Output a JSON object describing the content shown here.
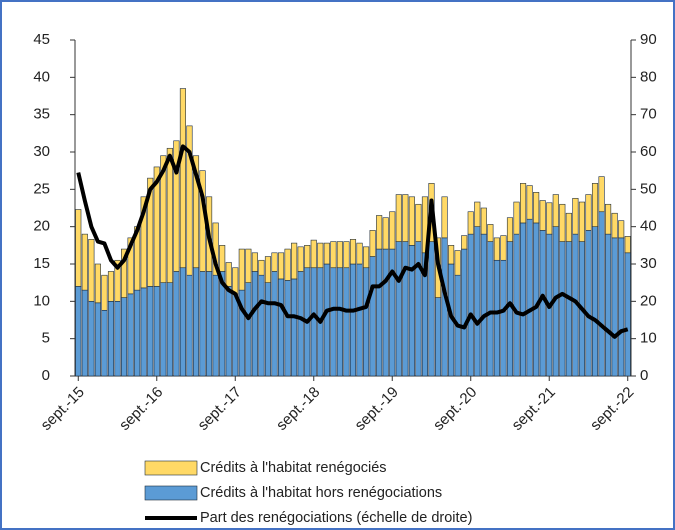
{
  "chart_data": {
    "type": "bar-line",
    "categories": [
      "sept.-15",
      null,
      null,
      null,
      null,
      null,
      null,
      null,
      null,
      null,
      null,
      null,
      "sept.-16",
      null,
      null,
      null,
      null,
      null,
      null,
      null,
      null,
      null,
      null,
      null,
      "sept.-17",
      null,
      null,
      null,
      null,
      null,
      null,
      null,
      null,
      null,
      null,
      null,
      "sept.-18",
      null,
      null,
      null,
      null,
      null,
      null,
      null,
      null,
      null,
      null,
      null,
      "sept.-19",
      null,
      null,
      null,
      null,
      null,
      null,
      null,
      null,
      null,
      null,
      null,
      "sept.-20",
      null,
      null,
      null,
      null,
      null,
      null,
      null,
      null,
      null,
      null,
      null,
      "sept.-21",
      null,
      null,
      null,
      null,
      null,
      null,
      null,
      null,
      null,
      null,
      null,
      "sept.-22"
    ],
    "series": [
      {
        "name": "Crédits à l'habitat hors renégociations",
        "color": "#5b9bd5",
        "type": "bar",
        "values": [
          12,
          11.5,
          10,
          9.8,
          8.8,
          10,
          10,
          10.5,
          11,
          11.5,
          11.8,
          12,
          12,
          12.5,
          12.5,
          14,
          14.5,
          13.5,
          14.5,
          14,
          14,
          13.5,
          14,
          12,
          11,
          11.5,
          12.5,
          14,
          13.5,
          12.5,
          14,
          13,
          12.8,
          13,
          14,
          14.5,
          14.5,
          14.5,
          15,
          14.5,
          14.5,
          14.5,
          15,
          15,
          14.5,
          16,
          17,
          17,
          17,
          18,
          18,
          17.5,
          18,
          16.5,
          18,
          10.5,
          18.5,
          15,
          13.5,
          17,
          19,
          20,
          19,
          18,
          15.5,
          15.5,
          18,
          19,
          20.5,
          21,
          20.5,
          19.5,
          19,
          20,
          18,
          18,
          19,
          18,
          19.5,
          20,
          22,
          19,
          18.5,
          18.5,
          16.5
        ]
      },
      {
        "name": "Crédits à l'habitat renégociés",
        "color": "#ffd966",
        "type": "bar",
        "values": [
          10.3,
          7.5,
          8.3,
          5.2,
          4.7,
          4,
          5.5,
          6.5,
          7.5,
          8.5,
          12.2,
          14.5,
          16,
          17,
          18,
          17.5,
          24,
          20,
          15,
          13.5,
          10,
          7,
          3.5,
          3.2,
          3.5,
          5.5,
          4.5,
          2.5,
          2,
          3.5,
          2.5,
          3.5,
          4.2,
          4.8,
          3.3,
          3,
          3.7,
          3.3,
          2.8,
          3.5,
          3.5,
          3.5,
          3.3,
          2.8,
          2.8,
          3.5,
          4.5,
          4.2,
          5,
          6.3,
          6.3,
          6.5,
          5,
          7.5,
          7.8,
          8,
          5.5,
          2.5,
          3.3,
          1.8,
          3,
          3.3,
          3.5,
          2.3,
          3,
          3.3,
          3.2,
          4.3,
          5.3,
          4.5,
          4.1,
          4,
          4.2,
          4.3,
          5,
          3.8,
          4.8,
          5.3,
          4.8,
          5.8,
          4.7,
          4,
          3.3,
          2.3,
          2.2
        ]
      },
      {
        "name": "Part des renégociations (échelle de droite)",
        "color": "#000000",
        "type": "line",
        "axis": "y2",
        "values": [
          54.5,
          47,
          40,
          36,
          35.5,
          31,
          29,
          31,
          35,
          39,
          44,
          50,
          52,
          55,
          59,
          54.5,
          61.5,
          60,
          54,
          48,
          37,
          30,
          25,
          23,
          22,
          18,
          15.5,
          18,
          20,
          19.5,
          19.5,
          19,
          16,
          16,
          15.5,
          14.5,
          16.5,
          14.5,
          17.5,
          18,
          18,
          17.5,
          17.5,
          18,
          18.5,
          24,
          24,
          25.5,
          28,
          25.5,
          29,
          28.5,
          30,
          27,
          47,
          30,
          22.5,
          16,
          13.5,
          13,
          16.5,
          14,
          16,
          17,
          17,
          17.5,
          19.5,
          17,
          16.5,
          17.5,
          18.5,
          21.5,
          18.5,
          21,
          22,
          21,
          20,
          18,
          16,
          15,
          13.5,
          12,
          10.5,
          12,
          12.5
        ]
      }
    ],
    "ylim": [
      0,
      45
    ],
    "yticks": [
      0,
      5,
      10,
      15,
      20,
      25,
      30,
      35,
      40,
      45
    ],
    "y2lim": [
      0,
      90
    ],
    "y2ticks": [
      0,
      10,
      20,
      30,
      40,
      50,
      60,
      70,
      80,
      90
    ],
    "legend": "bottom",
    "grid": false
  }
}
